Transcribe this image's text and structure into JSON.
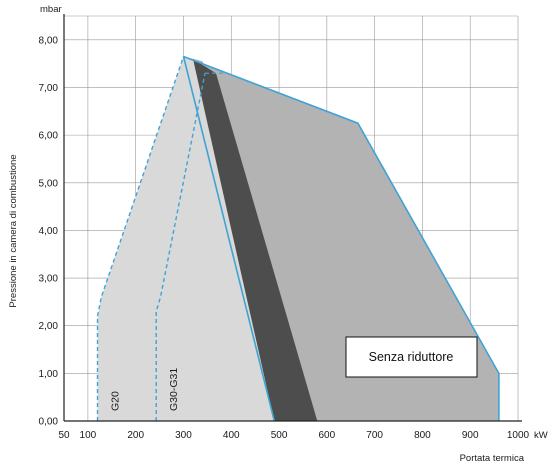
{
  "chart_data": {
    "type": "area",
    "title": "",
    "ylabel": "Pressione in camera di combustione",
    "ylabel_unit": "mbar",
    "xlabel": "Portata termica",
    "xlabel_unit": "kW",
    "xlim": [
      50,
      1000
    ],
    "ylim": [
      0,
      8.5
    ],
    "x_ticks": [
      "50",
      "100",
      "200",
      "300",
      "400",
      "500",
      "600",
      "700",
      "800",
      "900",
      "1000"
    ],
    "y_ticks": [
      "0,00",
      "1,00",
      "2,00",
      "3,00",
      "4,00",
      "5,00",
      "6,00",
      "7,00",
      "8,00"
    ],
    "grid": true,
    "colors": {
      "outline": "#3fa3d6",
      "light_area": "#d9d9d9",
      "mid_area": "#b3b3b3",
      "dark_band": "#4d4d4d"
    },
    "regions": [
      {
        "name": "G20",
        "label": "G20",
        "points": [
          [
            120,
            0
          ],
          [
            120,
            2.2
          ],
          [
            128,
            2.6
          ],
          [
            300,
            7.65
          ],
          [
            390,
            7.3
          ],
          [
            490,
            0
          ]
        ]
      },
      {
        "name": "G30-G31",
        "label": "G30-G31",
        "points": [
          [
            243,
            0
          ],
          [
            243,
            2.3
          ],
          [
            252,
            2.6
          ],
          [
            345,
            7.3
          ],
          [
            390,
            7.3
          ],
          [
            490,
            0
          ]
        ]
      },
      {
        "name": "Senza riduttore",
        "label": "Senza riduttore",
        "points": [
          [
            300,
            7.65
          ],
          [
            665,
            6.25
          ],
          [
            960,
            1.0
          ],
          [
            960,
            0
          ],
          [
            580,
            0
          ],
          [
            340,
            7.55
          ]
        ]
      }
    ],
    "dark_band": {
      "points": [
        [
          320,
          7.6
        ],
        [
          368,
          7.3
        ],
        [
          580,
          0
        ],
        [
          490,
          0
        ]
      ]
    },
    "annotations": [
      "G20",
      "G30-G31",
      "Senza riduttore"
    ]
  }
}
